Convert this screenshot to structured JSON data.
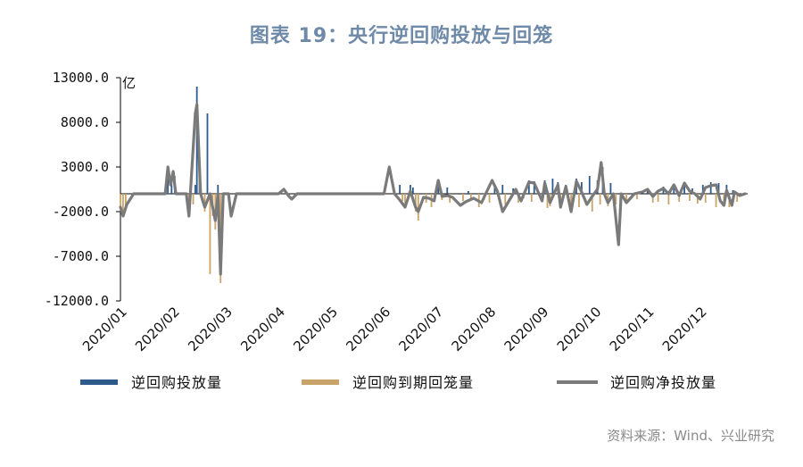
{
  "title": "图表 19：央行逆回购投放与回笼",
  "source": "资料来源：Wind、兴业研究",
  "chart_data": {
    "type": "bar",
    "unit": "亿",
    "ylim": [
      -12000,
      13000
    ],
    "y_ticks": [
      "13000.0",
      "8000.0",
      "3000.0",
      "-2000.0",
      "-7000.0",
      "-12000.0"
    ],
    "y_tick_values": [
      13000,
      8000,
      3000,
      -2000,
      -7000,
      -12000
    ],
    "x_range": [
      1,
      12.9
    ],
    "x_ticks": [
      "2020/01",
      "2020/02",
      "2020/03",
      "2020/04",
      "2020/05",
      "2020/06",
      "2020/07",
      "2020/08",
      "2020/09",
      "2020/10",
      "2020/11",
      "2020/12"
    ],
    "x_tick_values": [
      1,
      2,
      3,
      4,
      5,
      6,
      7,
      8,
      9,
      10,
      11,
      12
    ],
    "legend": [
      "逆回购投放量",
      "逆回购到期回笼量",
      "逆回购净投放量"
    ],
    "colors": {
      "injection": "#2e5a8c",
      "maturity": "#c9a46a",
      "net": "#7a7a7a"
    },
    "series": [
      {
        "name": "逆回购投放量",
        "kind": "bar",
        "points": [
          [
            1.9,
            3000
          ],
          [
            1.97,
            2000
          ],
          [
            2.03,
            2000
          ],
          [
            2.42,
            1000
          ],
          [
            2.45,
            12000
          ],
          [
            2.5,
            2000
          ],
          [
            2.65,
            9000
          ],
          [
            2.85,
            1000
          ],
          [
            6.3,
            1000
          ],
          [
            6.5,
            1000
          ],
          [
            6.55,
            700
          ],
          [
            7.03,
            1500
          ],
          [
            7.2,
            700
          ],
          [
            7.6,
            300
          ],
          [
            8.1,
            700
          ],
          [
            8.25,
            1000
          ],
          [
            8.45,
            600
          ],
          [
            8.75,
            1500
          ],
          [
            8.85,
            1400
          ],
          [
            9.05,
            1500
          ],
          [
            9.2,
            1700
          ],
          [
            9.3,
            1300
          ],
          [
            9.45,
            1000
          ],
          [
            9.65,
            1700
          ],
          [
            9.75,
            1300
          ],
          [
            9.9,
            2000
          ],
          [
            10.05,
            1500
          ],
          [
            10.15,
            3000
          ],
          [
            10.3,
            1200
          ],
          [
            11.0,
            400
          ],
          [
            11.3,
            800
          ],
          [
            11.5,
            600
          ],
          [
            11.7,
            1200
          ],
          [
            11.85,
            600
          ],
          [
            12.05,
            1000
          ],
          [
            12.2,
            1300
          ],
          [
            12.35,
            1200
          ],
          [
            12.5,
            1000
          ],
          [
            12.62,
            400
          ]
        ]
      },
      {
        "name": "逆回购到期回笼量",
        "kind": "bar",
        "points": [
          [
            1.0,
            -1500
          ],
          [
            1.05,
            -2500
          ],
          [
            1.1,
            -1700
          ],
          [
            2.3,
            -2500
          ],
          [
            2.38,
            -1200
          ],
          [
            2.6,
            -2000
          ],
          [
            2.7,
            -9000
          ],
          [
            2.75,
            -2500
          ],
          [
            2.8,
            -4000
          ],
          [
            2.9,
            -10000
          ],
          [
            6.35,
            -800
          ],
          [
            6.4,
            -1500
          ],
          [
            6.6,
            -2000
          ],
          [
            6.65,
            -3000
          ],
          [
            6.8,
            -1000
          ],
          [
            6.9,
            -1500
          ],
          [
            7.1,
            -700
          ],
          [
            7.25,
            -1000
          ],
          [
            7.5,
            -800
          ],
          [
            7.65,
            -800
          ],
          [
            7.8,
            -1500
          ],
          [
            7.9,
            -700
          ],
          [
            8.0,
            -1000
          ],
          [
            8.3,
            -1200
          ],
          [
            8.55,
            -1000
          ],
          [
            8.65,
            -500
          ],
          [
            8.8,
            -900
          ],
          [
            9.1,
            -1600
          ],
          [
            9.15,
            -1400
          ],
          [
            9.35,
            -1500
          ],
          [
            9.55,
            -2000
          ],
          [
            9.7,
            -1500
          ],
          [
            9.95,
            -2000
          ],
          [
            10.1,
            -1200
          ],
          [
            10.25,
            -1400
          ],
          [
            10.4,
            -1200
          ],
          [
            10.6,
            -1000
          ],
          [
            10.8,
            -600
          ],
          [
            11.1,
            -1000
          ],
          [
            11.2,
            -900
          ],
          [
            11.4,
            -1200
          ],
          [
            11.6,
            -900
          ],
          [
            11.8,
            -800
          ],
          [
            11.95,
            -1100
          ],
          [
            12.1,
            -1000
          ],
          [
            12.3,
            -1500
          ],
          [
            12.45,
            -1200
          ],
          [
            12.55,
            -1500
          ],
          [
            12.7,
            -900
          ]
        ]
      },
      {
        "name": "逆回购净投放量",
        "kind": "line",
        "points": [
          [
            1.0,
            -1500
          ],
          [
            1.05,
            -2500
          ],
          [
            1.12,
            -1200
          ],
          [
            1.25,
            0
          ],
          [
            1.5,
            0
          ],
          [
            1.85,
            0
          ],
          [
            1.9,
            3000
          ],
          [
            1.95,
            1000
          ],
          [
            2.0,
            2500
          ],
          [
            2.05,
            0
          ],
          [
            2.25,
            0
          ],
          [
            2.3,
            -2500
          ],
          [
            2.42,
            9000
          ],
          [
            2.45,
            10000
          ],
          [
            2.52,
            0
          ],
          [
            2.6,
            -1500
          ],
          [
            2.7,
            0
          ],
          [
            2.8,
            -3000
          ],
          [
            2.85,
            0
          ],
          [
            2.9,
            -9000
          ],
          [
            2.95,
            0
          ],
          [
            3.05,
            0
          ],
          [
            3.1,
            -2500
          ],
          [
            3.2,
            0
          ],
          [
            4.0,
            0
          ],
          [
            4.1,
            500
          ],
          [
            4.2,
            -300
          ],
          [
            4.25,
            -600
          ],
          [
            4.35,
            0
          ],
          [
            6.0,
            0
          ],
          [
            6.1,
            3000
          ],
          [
            6.2,
            0
          ],
          [
            6.3,
            -700
          ],
          [
            6.4,
            -1500
          ],
          [
            6.5,
            300
          ],
          [
            6.6,
            -1500
          ],
          [
            6.65,
            -2000
          ],
          [
            6.75,
            -400
          ],
          [
            6.85,
            -500
          ],
          [
            6.95,
            -800
          ],
          [
            7.03,
            1500
          ],
          [
            7.1,
            -300
          ],
          [
            7.2,
            -200
          ],
          [
            7.3,
            -400
          ],
          [
            7.45,
            -1300
          ],
          [
            7.55,
            -900
          ],
          [
            7.7,
            -500
          ],
          [
            7.85,
            -1000
          ],
          [
            8.05,
            1500
          ],
          [
            8.15,
            300
          ],
          [
            8.25,
            -2000
          ],
          [
            8.4,
            -500
          ],
          [
            8.5,
            500
          ],
          [
            8.6,
            -800
          ],
          [
            8.75,
            1300
          ],
          [
            8.85,
            1200
          ],
          [
            9.0,
            -800
          ],
          [
            9.05,
            1200
          ],
          [
            9.15,
            -1000
          ],
          [
            9.3,
            1000
          ],
          [
            9.35,
            -1500
          ],
          [
            9.45,
            800
          ],
          [
            9.55,
            -2000
          ],
          [
            9.65,
            1400
          ],
          [
            9.75,
            200
          ],
          [
            9.85,
            -1200
          ],
          [
            9.95,
            -300
          ],
          [
            10.05,
            500
          ],
          [
            10.12,
            3500
          ],
          [
            10.18,
            0
          ],
          [
            10.25,
            -1000
          ],
          [
            10.35,
            0
          ],
          [
            10.45,
            -5700
          ],
          [
            10.5,
            0
          ],
          [
            10.6,
            -1000
          ],
          [
            10.75,
            0
          ],
          [
            10.9,
            200
          ],
          [
            11.0,
            500
          ],
          [
            11.1,
            -300
          ],
          [
            11.2,
            300
          ],
          [
            11.3,
            600
          ],
          [
            11.4,
            0
          ],
          [
            11.5,
            1000
          ],
          [
            11.6,
            -200
          ],
          [
            11.7,
            1200
          ],
          [
            11.8,
            300
          ],
          [
            11.9,
            0
          ],
          [
            12.0,
            -600
          ],
          [
            12.1,
            700
          ],
          [
            12.2,
            900
          ],
          [
            12.3,
            1000
          ],
          [
            12.38,
            -800
          ],
          [
            12.45,
            -1300
          ],
          [
            12.5,
            400
          ],
          [
            12.6,
            -1300
          ],
          [
            12.65,
            200
          ],
          [
            12.75,
            -200
          ],
          [
            12.85,
            0
          ]
        ]
      }
    ]
  }
}
